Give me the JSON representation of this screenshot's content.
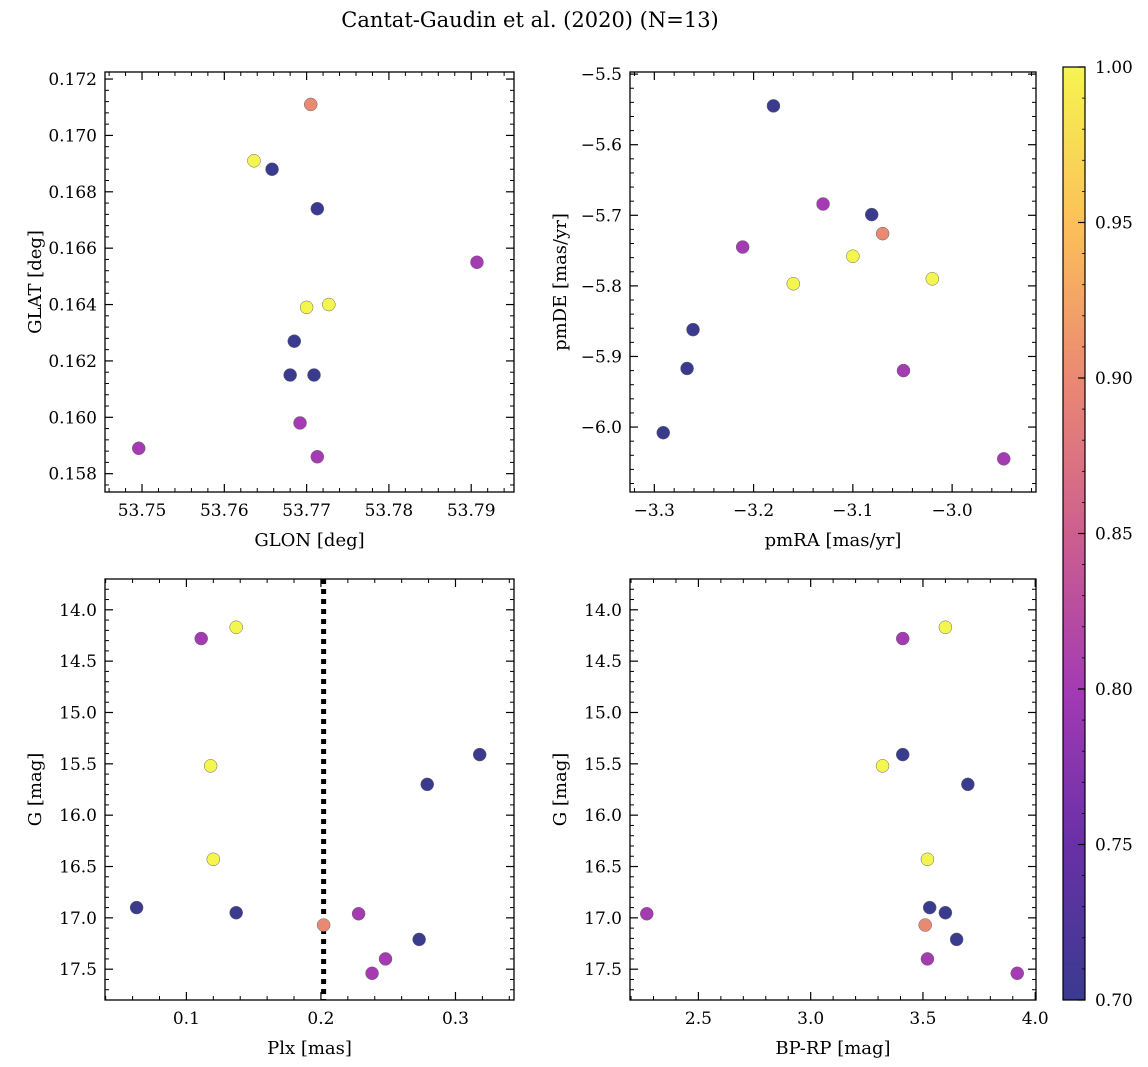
{
  "figure": {
    "title": "Cantat-Gaudin et al. (2020) (N=13)"
  },
  "colorbar": {
    "colormap": "plasma",
    "min": 0.7,
    "max": 1.0,
    "ticks": [
      0.7,
      0.75,
      0.8,
      0.85,
      0.9,
      0.95,
      1.0
    ],
    "tick_labels": [
      "0.70",
      "0.75",
      "0.80",
      "0.85",
      "0.90",
      "0.95",
      "1.00"
    ]
  },
  "chart_data": [
    {
      "type": "scatter",
      "id": "sky",
      "xlabel": "GLON [deg]",
      "ylabel": "GLAT [deg]",
      "xlim": [
        53.7455,
        53.7952
      ],
      "ylim": [
        0.15735,
        0.17225
      ],
      "xticks": [
        53.75,
        53.76,
        53.77,
        53.78,
        53.79
      ],
      "xtick_labels": [
        "53.75",
        "53.76",
        "53.77",
        "53.78",
        "53.79"
      ],
      "yticks": [
        0.158,
        0.16,
        0.162,
        0.164,
        0.166,
        0.168,
        0.17,
        0.172
      ],
      "ytick_labels": [
        "0.158",
        "0.160",
        "0.162",
        "0.164",
        "0.166",
        "0.168",
        "0.170",
        "0.172"
      ],
      "points": [
        {
          "x": 53.7496,
          "y": 0.1589,
          "c": 0.8
        },
        {
          "x": 53.7636,
          "y": 0.1691,
          "c": 1.0
        },
        {
          "x": 53.7658,
          "y": 0.1688,
          "c": 0.7
        },
        {
          "x": 53.768,
          "y": 0.1615,
          "c": 0.7
        },
        {
          "x": 53.7685,
          "y": 0.1627,
          "c": 0.7
        },
        {
          "x": 53.7692,
          "y": 0.1598,
          "c": 0.8
        },
        {
          "x": 53.77,
          "y": 0.1639,
          "c": 1.0
        },
        {
          "x": 53.7705,
          "y": 0.1711,
          "c": 0.9
        },
        {
          "x": 53.7709,
          "y": 0.1615,
          "c": 0.7
        },
        {
          "x": 53.7713,
          "y": 0.1674,
          "c": 0.7
        },
        {
          "x": 53.7713,
          "y": 0.1586,
          "c": 0.8
        },
        {
          "x": 53.7727,
          "y": 0.164,
          "c": 1.0
        },
        {
          "x": 53.7907,
          "y": 0.1655,
          "c": 0.8
        }
      ]
    },
    {
      "type": "scatter",
      "id": "pm",
      "xlabel": "pmRA [mas/yr]",
      "ylabel": "pmDE [mas/yr]",
      "xlim": [
        -3.3245,
        -2.9155
      ],
      "ylim": [
        -6.092,
        -5.497
      ],
      "xticks": [
        -3.3,
        -3.2,
        -3.1,
        -3.0
      ],
      "xtick_labels": [
        "−3.3",
        "−3.2",
        "−3.1",
        "−3.0"
      ],
      "yticks": [
        -6.0,
        -5.9,
        -5.8,
        -5.7,
        -5.6,
        -5.5
      ],
      "ytick_labels": [
        "−6.0",
        "−5.9",
        "−5.8",
        "−5.7",
        "−5.6",
        "−5.5"
      ],
      "points": [
        {
          "x": -3.18,
          "y": -5.545,
          "c": 0.7
        },
        {
          "x": -3.13,
          "y": -5.684,
          "c": 0.8
        },
        {
          "x": -3.081,
          "y": -5.699,
          "c": 0.7
        },
        {
          "x": -3.07,
          "y": -5.726,
          "c": 0.9
        },
        {
          "x": -3.211,
          "y": -5.745,
          "c": 0.8
        },
        {
          "x": -3.1,
          "y": -5.758,
          "c": 1.0
        },
        {
          "x": -3.16,
          "y": -5.797,
          "c": 1.0
        },
        {
          "x": -3.02,
          "y": -5.79,
          "c": 1.0
        },
        {
          "x": -3.261,
          "y": -5.862,
          "c": 0.7
        },
        {
          "x": -3.267,
          "y": -5.917,
          "c": 0.7
        },
        {
          "x": -3.049,
          "y": -5.92,
          "c": 0.8
        },
        {
          "x": -3.291,
          "y": -6.008,
          "c": 0.7
        },
        {
          "x": -2.948,
          "y": -6.045,
          "c": 0.8
        }
      ]
    },
    {
      "type": "scatter",
      "id": "plx",
      "xlabel": "Plx [mas]",
      "ylabel": "G [mag]",
      "xlim": [
        0.0395,
        0.3435
      ],
      "ylim": [
        17.8,
        13.7
      ],
      "y_inverted": true,
      "xticks": [
        0.1,
        0.2,
        0.3
      ],
      "xtick_labels": [
        "0.1",
        "0.2",
        "0.3"
      ],
      "yticks": [
        14.0,
        14.5,
        15.0,
        15.5,
        16.0,
        16.5,
        17.0,
        17.5
      ],
      "ytick_labels": [
        "14.0",
        "14.5",
        "15.0",
        "15.5",
        "16.0",
        "16.5",
        "17.0",
        "17.5"
      ],
      "vline": {
        "x": 0.202,
        "style": "dotted"
      },
      "points": [
        {
          "x": 0.137,
          "y": 14.17,
          "c": 1.0
        },
        {
          "x": 0.111,
          "y": 14.28,
          "c": 0.8
        },
        {
          "x": 0.318,
          "y": 15.41,
          "c": 0.7
        },
        {
          "x": 0.118,
          "y": 15.52,
          "c": 1.0
        },
        {
          "x": 0.279,
          "y": 15.7,
          "c": 0.7
        },
        {
          "x": 0.12,
          "y": 16.43,
          "c": 1.0
        },
        {
          "x": 0.063,
          "y": 16.9,
          "c": 0.7
        },
        {
          "x": 0.137,
          "y": 16.95,
          "c": 0.7
        },
        {
          "x": 0.228,
          "y": 16.96,
          "c": 0.8
        },
        {
          "x": 0.202,
          "y": 17.07,
          "c": 0.9
        },
        {
          "x": 0.273,
          "y": 17.21,
          "c": 0.7
        },
        {
          "x": 0.248,
          "y": 17.4,
          "c": 0.8
        },
        {
          "x": 0.238,
          "y": 17.54,
          "c": 0.8
        }
      ]
    },
    {
      "type": "scatter",
      "id": "cmd",
      "xlabel": "BP-RP [mag]",
      "ylabel": "G [mag]",
      "xlim": [
        2.1953,
        4.0035
      ],
      "ylim": [
        17.8,
        13.7
      ],
      "y_inverted": true,
      "xticks": [
        2.5,
        3.0,
        3.5,
        4.0
      ],
      "xtick_labels": [
        "2.5",
        "3.0",
        "3.5",
        "4.0"
      ],
      "yticks": [
        14.0,
        14.5,
        15.0,
        15.5,
        16.0,
        16.5,
        17.0,
        17.5
      ],
      "ytick_labels": [
        "14.0",
        "14.5",
        "15.0",
        "15.5",
        "16.0",
        "16.5",
        "17.0",
        "17.5"
      ],
      "points": [
        {
          "x": 3.6,
          "y": 14.17,
          "c": 1.0
        },
        {
          "x": 3.41,
          "y": 14.28,
          "c": 0.8
        },
        {
          "x": 3.41,
          "y": 15.41,
          "c": 0.7
        },
        {
          "x": 3.32,
          "y": 15.52,
          "c": 1.0
        },
        {
          "x": 3.7,
          "y": 15.7,
          "c": 0.7
        },
        {
          "x": 3.52,
          "y": 16.43,
          "c": 1.0
        },
        {
          "x": 3.53,
          "y": 16.9,
          "c": 0.7
        },
        {
          "x": 3.6,
          "y": 16.95,
          "c": 0.7
        },
        {
          "x": 2.27,
          "y": 16.96,
          "c": 0.8
        },
        {
          "x": 3.51,
          "y": 17.07,
          "c": 0.9
        },
        {
          "x": 3.65,
          "y": 17.21,
          "c": 0.7
        },
        {
          "x": 3.52,
          "y": 17.4,
          "c": 0.8
        },
        {
          "x": 3.92,
          "y": 17.54,
          "c": 0.8
        }
      ]
    }
  ]
}
